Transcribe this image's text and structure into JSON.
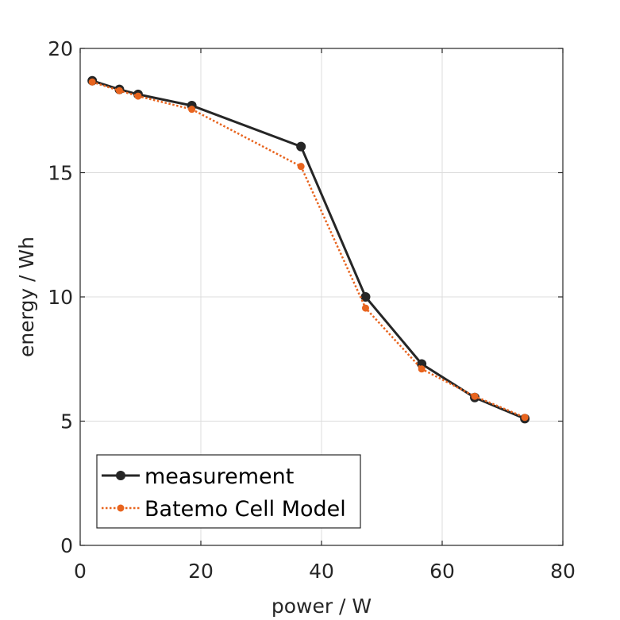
{
  "chart_data": {
    "type": "line",
    "xlabel": "power / W",
    "ylabel": "energy / Wh",
    "xlim": [
      0,
      80
    ],
    "ylim": [
      0,
      20
    ],
    "xticks": [
      "0",
      "20",
      "40",
      "60",
      "80"
    ],
    "yticks": [
      "0",
      "5",
      "10",
      "15",
      "20"
    ],
    "grid": true,
    "legend_location": "bottom-left",
    "series": [
      {
        "name": "measurement",
        "color": "#262626",
        "style": "solid",
        "marker": "circle",
        "x": [
          2.0,
          6.5,
          9.6,
          18.5,
          36.6,
          47.3,
          56.6,
          65.4,
          73.7
        ],
        "y": [
          18.7,
          18.35,
          18.15,
          17.7,
          16.05,
          10.0,
          7.3,
          5.95,
          5.1
        ]
      },
      {
        "name": "Batemo Cell Model",
        "color": "#e8641e",
        "style": "dotted",
        "marker": "dot",
        "x": [
          2.0,
          6.5,
          9.6,
          18.5,
          36.6,
          47.3,
          56.6,
          65.4,
          73.7
        ],
        "y": [
          18.65,
          18.3,
          18.08,
          17.55,
          15.25,
          9.55,
          7.1,
          6.0,
          5.15
        ]
      }
    ]
  }
}
